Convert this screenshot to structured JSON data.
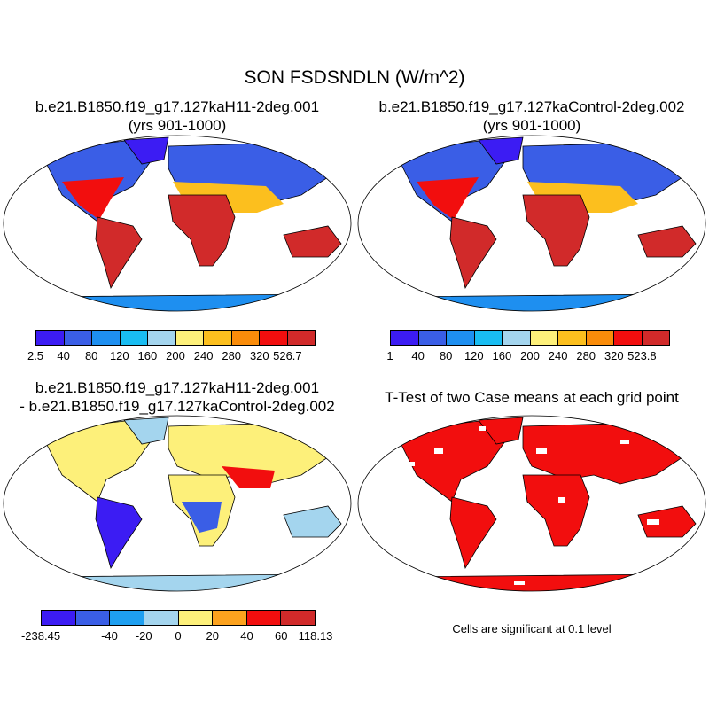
{
  "title": "SON FSDSNDLN (W/m^2)",
  "panels": [
    {
      "title_line1": "b.e21.B1850.f19_g17.127kaH11-2deg.001",
      "title_line2": "(yrs 901-1000)",
      "colorbar": {
        "colors": [
          "#3c1cf3",
          "#3a5ee6",
          "#1e8ff0",
          "#19bdf2",
          "#a4d5ee",
          "#fdf07a",
          "#fcbf1e",
          "#fa8c0a",
          "#f20e0e",
          "#d12a2a"
        ],
        "labels": [
          "2.5",
          "40",
          "80",
          "120",
          "160",
          "200",
          "240",
          "280",
          "320",
          "526.7"
        ]
      }
    },
    {
      "title_line1": "b.e21.B1850.f19_g17.127kaControl-2deg.002",
      "title_line2": "(yrs 901-1000)",
      "colorbar": {
        "colors": [
          "#3c1cf3",
          "#3a5ee6",
          "#1e8ff0",
          "#19bdf2",
          "#a4d5ee",
          "#fdf07a",
          "#fcbf1e",
          "#fa8c0a",
          "#f20e0e",
          "#d12a2a"
        ],
        "labels": [
          "1",
          "40",
          "80",
          "120",
          "160",
          "200",
          "240",
          "280",
          "320",
          "523.8"
        ]
      }
    },
    {
      "title_line1": "b.e21.B1850.f19_g17.127kaH11-2deg.001",
      "title_line2": "- b.e21.B1850.f19_g17.127kaControl-2deg.002",
      "colorbar": {
        "colors": [
          "#3c1cf3",
          "#3a5ee6",
          "#1e9ff0",
          "#a4d5ee",
          "#fdf07a",
          "#fca21e",
          "#f20e0e",
          "#d12a2a"
        ],
        "labels": [
          "-238.45",
          "",
          "-40",
          "-20",
          "0",
          "20",
          "40",
          "60",
          "118.13"
        ]
      }
    },
    {
      "title_line1": "T-Test of two Case means at each grid point",
      "note": "Cells are significant at 0.1 level"
    }
  ]
}
